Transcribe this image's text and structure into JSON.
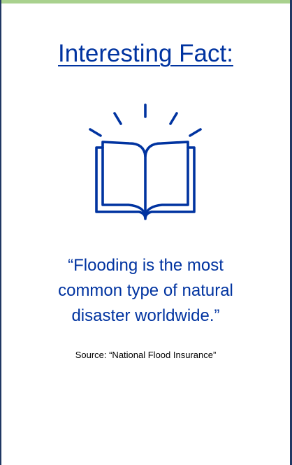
{
  "accent_colors": {
    "top_bar": "#a9d18e",
    "text_blue": "#0033a0",
    "border": "#203864"
  },
  "title": "Interesting Fact:",
  "icon": "open-book-icon",
  "quote": {
    "line1": "“Flooding is the most",
    "line2": "common type of natural",
    "line3": "disaster worldwide.”"
  },
  "source": "Source: “National Flood Insurance”"
}
